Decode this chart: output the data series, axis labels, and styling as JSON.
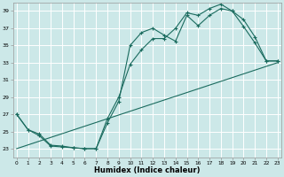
{
  "xlabel": "Humidex (Indice chaleur)",
  "x_ticks": [
    0,
    1,
    2,
    3,
    4,
    5,
    6,
    7,
    8,
    9,
    10,
    11,
    12,
    13,
    14,
    15,
    16,
    17,
    18,
    19,
    20,
    21,
    22,
    23
  ],
  "ylim": [
    22.0,
    40.0
  ],
  "xlim": [
    -0.3,
    23.3
  ],
  "yticks": [
    23,
    25,
    27,
    29,
    31,
    33,
    35,
    37,
    39
  ],
  "background_color": "#cce8e8",
  "grid_color": "#ffffff",
  "line_color": "#1a6b5e",
  "line1_x": [
    0,
    1,
    2,
    3,
    4,
    5,
    6,
    7,
    8,
    9,
    10,
    11,
    12,
    13,
    14,
    15,
    16,
    17,
    18,
    19,
    20,
    21,
    22,
    23
  ],
  "line1_y": [
    27,
    25.2,
    24.5,
    23.3,
    23.2,
    23.1,
    23.0,
    23.0,
    26.0,
    28.5,
    35.0,
    36.5,
    37.0,
    36.2,
    35.5,
    38.5,
    37.3,
    38.5,
    39.3,
    39.0,
    37.2,
    35.3,
    33.2,
    33.2
  ],
  "line2_x": [
    0,
    1,
    2,
    3,
    4,
    5,
    6,
    7,
    8,
    9,
    10,
    11,
    12,
    13,
    14,
    15,
    16,
    17,
    18,
    19,
    20,
    21,
    22,
    23
  ],
  "line2_y": [
    27,
    25.2,
    24.7,
    23.4,
    23.3,
    23.1,
    23.0,
    23.0,
    26.5,
    29.0,
    32.8,
    34.5,
    35.8,
    35.8,
    37.0,
    38.8,
    38.5,
    39.3,
    39.8,
    39.0,
    38.0,
    36.0,
    33.2,
    33.2
  ],
  "line3_x": [
    0,
    23
  ],
  "line3_y": [
    23.0,
    33.0
  ]
}
